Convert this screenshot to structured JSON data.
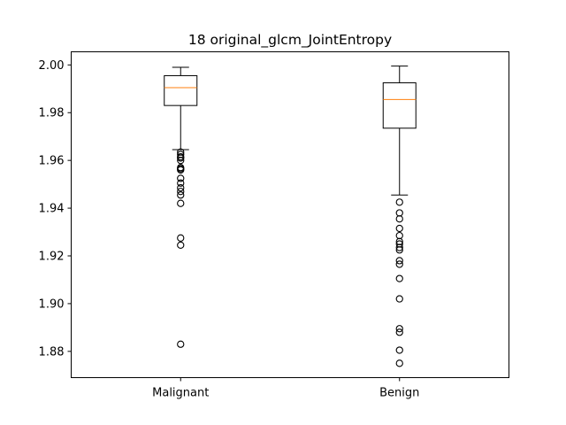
{
  "chart_data": {
    "type": "box",
    "title": "18 original_glcm_JointEntropy",
    "xlabel": "",
    "ylabel": "",
    "categories": [
      "Malignant",
      "Benign"
    ],
    "ylim": [
      1.869,
      2.0055
    ],
    "yticks": [
      1.88,
      1.9,
      1.92,
      1.94,
      1.96,
      1.98,
      2.0
    ],
    "ytick_labels": [
      "1.88",
      "1.90",
      "1.92",
      "1.94",
      "1.96",
      "1.98",
      "2.00"
    ],
    "grid": false,
    "boxes": [
      {
        "category": "Malignant",
        "whisker_low": 1.9645,
        "q1": 1.983,
        "median": 1.9905,
        "q3": 1.9955,
        "whisker_high": 1.999,
        "outliers": [
          1.9635,
          1.9625,
          1.9615,
          1.961,
          1.96,
          1.957,
          1.9565,
          1.956,
          1.9525,
          1.9505,
          1.9485,
          1.947,
          1.9455,
          1.942,
          1.9275,
          1.9245,
          1.883
        ]
      },
      {
        "category": "Benign",
        "whisker_low": 1.9455,
        "q1": 1.9735,
        "median": 1.9855,
        "q3": 1.9925,
        "whisker_high": 1.9995,
        "outliers": [
          1.9425,
          1.938,
          1.9355,
          1.9315,
          1.9285,
          1.926,
          1.925,
          1.9235,
          1.9225,
          1.918,
          1.9165,
          1.9105,
          1.902,
          1.8895,
          1.888,
          1.8805,
          1.875
        ]
      }
    ],
    "colors": {
      "box": "#000000",
      "median": "#ff7f0e",
      "outlier_edge": "#000000"
    }
  }
}
